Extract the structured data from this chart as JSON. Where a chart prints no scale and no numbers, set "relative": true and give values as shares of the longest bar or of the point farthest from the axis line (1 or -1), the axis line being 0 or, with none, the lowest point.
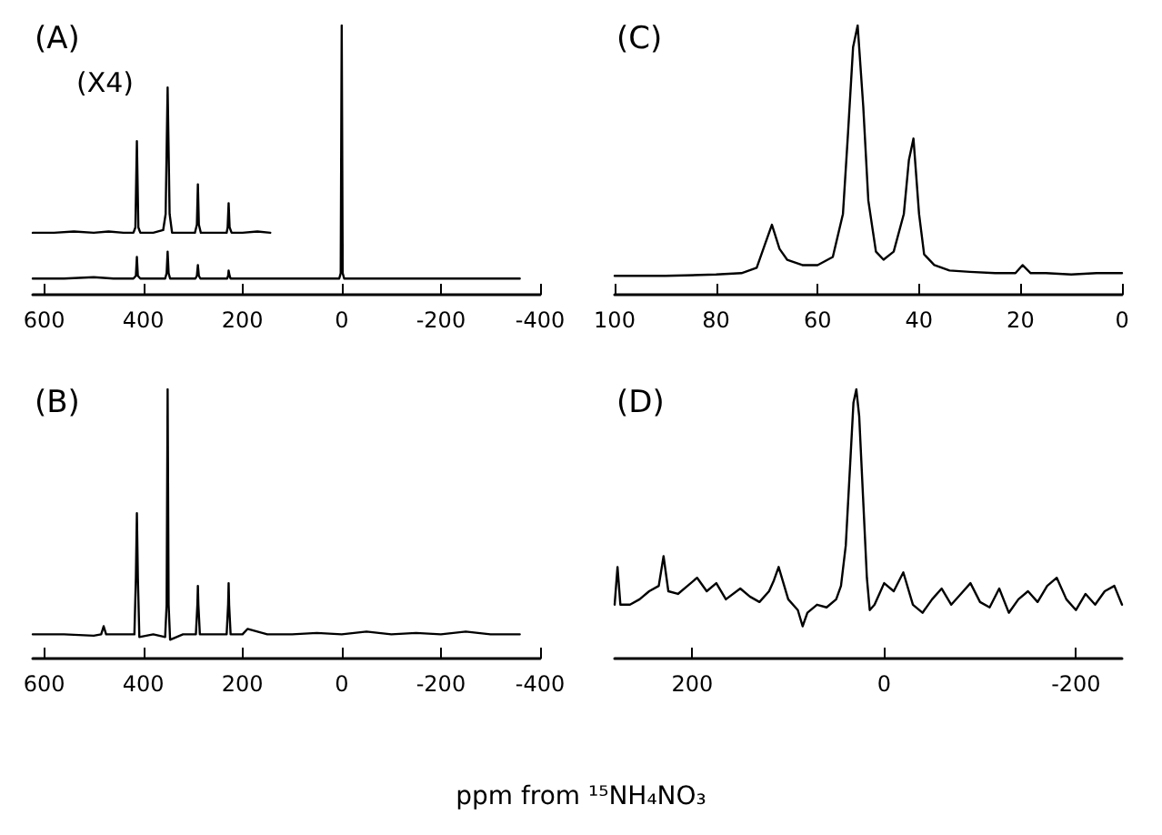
{
  "chart_data": [
    {
      "type": "line",
      "title": "(A)",
      "annotations": [
        "(X4)"
      ],
      "relative": true,
      "xlim": [
        623,
        -400
      ],
      "xticks": [
        600,
        400,
        200,
        0,
        -200,
        -400
      ],
      "series": [
        {
          "color": "#000000",
          "x": [
            623,
            560,
            500,
            460,
            420,
            415,
            413,
            411,
            406,
            380,
            356,
            353,
            351,
            349,
            346,
            320,
            295,
            292,
            290,
            288,
            285,
            260,
            231,
            229,
            228,
            226,
            224,
            200,
            150,
            100,
            60,
            20,
            5,
            2,
            0,
            -2,
            -5,
            -30,
            -100,
            -200,
            -300,
            -359
          ],
          "values": [
            0.06,
            0.06,
            0.065,
            0.06,
            0.06,
            0.07,
            0.14,
            0.07,
            0.06,
            0.06,
            0.06,
            0.08,
            0.16,
            0.08,
            0.06,
            0.06,
            0.06,
            0.07,
            0.11,
            0.07,
            0.06,
            0.06,
            0.06,
            0.07,
            0.09,
            0.07,
            0.06,
            0.06,
            0.06,
            0.06,
            0.06,
            0.06,
            0.06,
            0.08,
            1.0,
            0.08,
            0.06,
            0.06,
            0.06,
            0.06,
            0.06,
            0.06
          ]
        },
        {
          "color": "#000000",
          "x": [
            623,
            580,
            540,
            500,
            470,
            440,
            420,
            416,
            413,
            410,
            406,
            380,
            360,
            355,
            351,
            347,
            342,
            320,
            296,
            292,
            290,
            288,
            284,
            260,
            232,
            230,
            228,
            226,
            222,
            200,
            170,
            144
          ],
          "values": [
            0.23,
            0.23,
            0.235,
            0.23,
            0.235,
            0.23,
            0.23,
            0.25,
            0.57,
            0.25,
            0.23,
            0.23,
            0.24,
            0.3,
            0.77,
            0.3,
            0.23,
            0.23,
            0.23,
            0.26,
            0.41,
            0.26,
            0.23,
            0.23,
            0.23,
            0.25,
            0.34,
            0.25,
            0.23,
            0.23,
            0.235,
            0.23
          ]
        }
      ]
    },
    {
      "type": "line",
      "title": "(C)",
      "relative": true,
      "xlim": [
        100,
        0
      ],
      "xticks": [
        100,
        80,
        60,
        40,
        20,
        0
      ],
      "series": [
        {
          "color": "#000000",
          "x": [
            100,
            90,
            80,
            75,
            72,
            70.5,
            69,
            67.5,
            66,
            63,
            60,
            57,
            55,
            54,
            53,
            52.1,
            51,
            50,
            48.5,
            47,
            45,
            43,
            42,
            41.1,
            40,
            39,
            37,
            34,
            30,
            25,
            21,
            19.6,
            18,
            15,
            10,
            5,
            0
          ],
          "values": [
            0.07,
            0.07,
            0.075,
            0.08,
            0.1,
            0.18,
            0.26,
            0.17,
            0.13,
            0.11,
            0.11,
            0.14,
            0.3,
            0.6,
            0.92,
            1.0,
            0.7,
            0.35,
            0.16,
            0.13,
            0.16,
            0.3,
            0.5,
            0.58,
            0.3,
            0.15,
            0.11,
            0.09,
            0.085,
            0.08,
            0.08,
            0.11,
            0.08,
            0.08,
            0.075,
            0.08,
            0.08
          ]
        }
      ]
    },
    {
      "type": "line",
      "title": "(B)",
      "relative": true,
      "xlim": [
        623,
        -400
      ],
      "xticks": [
        600,
        400,
        200,
        0,
        -200,
        -400
      ],
      "series": [
        {
          "color": "#000000",
          "x": [
            623,
            560,
            500,
            485,
            480,
            475,
            440,
            418,
            415,
            413,
            411,
            408,
            380,
            356,
            353,
            351,
            349,
            346,
            320,
            294,
            291,
            290,
            289,
            286,
            260,
            232,
            229,
            228,
            227,
            224,
            200,
            190,
            150,
            100,
            50,
            0,
            -50,
            -100,
            -150,
            -200,
            -250,
            -300,
            -359
          ],
          "values": [
            0.09,
            0.09,
            0.085,
            0.09,
            0.12,
            0.09,
            0.09,
            0.09,
            0.3,
            0.54,
            0.3,
            0.08,
            0.09,
            0.08,
            0.2,
            1.0,
            0.2,
            0.07,
            0.09,
            0.09,
            0.2,
            0.27,
            0.2,
            0.09,
            0.09,
            0.09,
            0.2,
            0.28,
            0.2,
            0.09,
            0.09,
            0.11,
            0.09,
            0.09,
            0.095,
            0.09,
            0.1,
            0.09,
            0.095,
            0.09,
            0.1,
            0.09,
            0.09
          ]
        }
      ]
    },
    {
      "type": "line",
      "title": "(D)",
      "xlabel": "ppm from ¹⁵NH₄NO₃",
      "relative": true,
      "xlim": [
        281,
        -248
      ],
      "xticks": [
        200,
        0,
        -200
      ],
      "series": [
        {
          "color": "#000000",
          "x": [
            281,
            278,
            275,
            265,
            255,
            245,
            235,
            230,
            225,
            215,
            205,
            195,
            185,
            175,
            165,
            150,
            140,
            130,
            120,
            115,
            110,
            100,
            90,
            85,
            80,
            70,
            60,
            50,
            45,
            40,
            35,
            32,
            29,
            26,
            22,
            18,
            15,
            10,
            5,
            0,
            -10,
            -20,
            -30,
            -40,
            -50,
            -60,
            -70,
            -80,
            -90,
            -100,
            -110,
            -120,
            -130,
            -140,
            -150,
            -160,
            -170,
            -180,
            -190,
            -200,
            -210,
            -220,
            -230,
            -240,
            -248
          ],
          "values": [
            0.2,
            0.34,
            0.2,
            0.2,
            0.22,
            0.25,
            0.27,
            0.38,
            0.25,
            0.24,
            0.27,
            0.3,
            0.25,
            0.28,
            0.22,
            0.26,
            0.23,
            0.21,
            0.25,
            0.29,
            0.34,
            0.22,
            0.18,
            0.12,
            0.17,
            0.2,
            0.19,
            0.22,
            0.27,
            0.42,
            0.75,
            0.95,
            1.0,
            0.9,
            0.6,
            0.3,
            0.18,
            0.2,
            0.24,
            0.28,
            0.25,
            0.32,
            0.2,
            0.17,
            0.22,
            0.26,
            0.2,
            0.24,
            0.28,
            0.21,
            0.19,
            0.26,
            0.17,
            0.22,
            0.25,
            0.21,
            0.27,
            0.3,
            0.22,
            0.18,
            0.24,
            0.2,
            0.25,
            0.27,
            0.2
          ]
        }
      ]
    }
  ]
}
